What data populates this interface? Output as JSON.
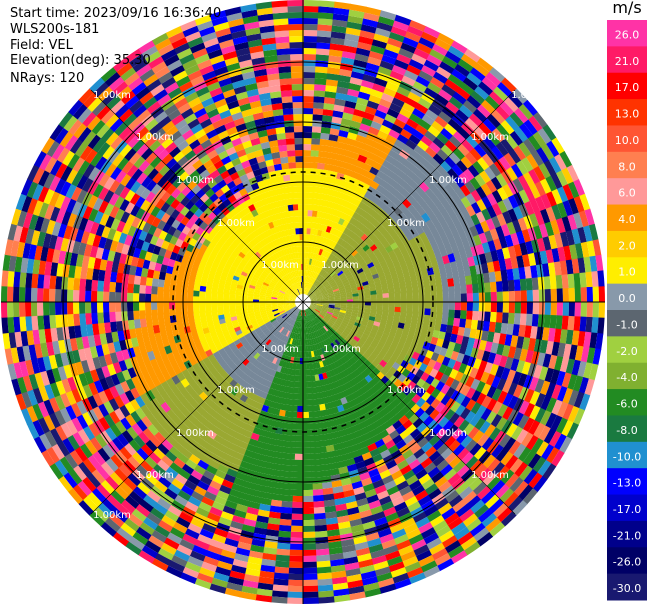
{
  "header": {
    "start_time": "Start time: 2023/09/16 16:36:40",
    "instrument": "WLS200s-181",
    "field": "Field: VEL",
    "elevation": "Elevation(deg): 35.30",
    "nrays": "NRays: 120"
  },
  "colorbar": {
    "unit": "m/s",
    "ticks": [
      "26.0",
      "21.0",
      "17.0",
      "13.0",
      "10.0",
      "8.0",
      "6.0",
      "4.0",
      "2.0",
      "1.0",
      "0.0",
      "-1.0",
      "-2.0",
      "-4.0",
      "-6.0",
      "-8.0",
      "-10.0",
      "-13.0",
      "-17.0",
      "-21.0",
      "-26.0",
      "-30.0"
    ],
    "colors": [
      "#ff33a6",
      "#ff1a66",
      "#ff0000",
      "#ff3300",
      "#ff5533",
      "#ff7f50",
      "#ff9999",
      "#ff9900",
      "#ffcc00",
      "#ffee00",
      "#8899aa",
      "#5c6670",
      "#a0d040",
      "#80b030",
      "#228b22",
      "#1a7a40",
      "#2090d0",
      "#0000ff",
      "#0000cc",
      "#00008b",
      "#000066",
      "#191970"
    ]
  },
  "chart_data": {
    "type": "ppi",
    "field": "VEL",
    "units": "m/s",
    "nrays": 120,
    "range_ring_labels": [
      "1.00km",
      "1.00km",
      "1.00km",
      "1.00km",
      "1.00km",
      "1.00km",
      "1.00km",
      "1.00km",
      "1.00km",
      "1.00km",
      "1.00km",
      "1.00km",
      "1.00km",
      "1.00km",
      "1.00km",
      "1.00km",
      "1.00km",
      "1.00km",
      "1.00km",
      "1.00km",
      "1.00km",
      "1.00km"
    ],
    "range_rings_km": [
      1,
      2,
      3,
      4
    ],
    "ring_label": "1.00km"
  }
}
